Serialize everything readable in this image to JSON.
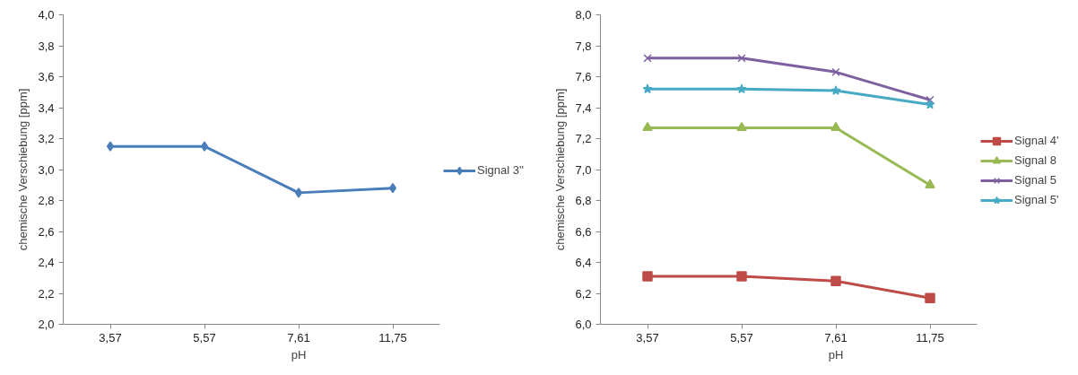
{
  "chart_data": [
    {
      "type": "line",
      "xlabel": "pH",
      "ylabel": "chemische Verschiebung [ppm]",
      "categories": [
        "3,57",
        "5,57",
        "7,61",
        "11,75"
      ],
      "series": [
        {
          "name": "Signal 3''",
          "color": "#4a7ebb",
          "marker": "diamond",
          "values": [
            3.15,
            3.15,
            2.85,
            2.88
          ]
        }
      ],
      "ylim": [
        2.0,
        4.0
      ],
      "yticks": [
        {
          "value": 2.0,
          "label": "2,0"
        },
        {
          "value": 2.2,
          "label": "2,2"
        },
        {
          "value": 2.4,
          "label": "2,4"
        },
        {
          "value": 2.6,
          "label": "2,6"
        },
        {
          "value": 2.8,
          "label": "2,8"
        },
        {
          "value": 3.0,
          "label": "3,0"
        },
        {
          "value": 3.2,
          "label": "3,2"
        },
        {
          "value": 3.4,
          "label": "3,4"
        },
        {
          "value": 3.6,
          "label": "3,6"
        },
        {
          "value": 3.8,
          "label": "3,8"
        },
        {
          "value": 4.0,
          "label": "4,0"
        }
      ],
      "grid": false,
      "legend": "right",
      "line_style": "solid"
    },
    {
      "type": "line",
      "xlabel": "pH",
      "ylabel": "chemische Verschiebung [ppm]",
      "categories": [
        "3,57",
        "5,57",
        "7,61",
        "11,75"
      ],
      "series": [
        {
          "name": "Signal 4'",
          "color": "#be4b48",
          "marker": "square",
          "values": [
            6.31,
            6.31,
            6.28,
            6.17
          ]
        },
        {
          "name": "Signal 8",
          "color": "#98b954",
          "marker": "triangle",
          "values": [
            7.27,
            7.27,
            7.27,
            6.9
          ]
        },
        {
          "name": "Signal 5",
          "color": "#7d60a0",
          "marker": "cross",
          "values": [
            7.72,
            7.72,
            7.63,
            7.45
          ]
        },
        {
          "name": "Signal 5'",
          "color": "#46aac5",
          "marker": "star",
          "values": [
            7.52,
            7.52,
            7.51,
            7.42
          ]
        }
      ],
      "ylim": [
        6.0,
        8.0
      ],
      "yticks": [
        {
          "value": 6.0,
          "label": "6,0"
        },
        {
          "value": 6.2,
          "label": "6,2"
        },
        {
          "value": 6.4,
          "label": "6,4"
        },
        {
          "value": 6.6,
          "label": "6,6"
        },
        {
          "value": 6.8,
          "label": "6,8"
        },
        {
          "value": 7.0,
          "label": "7,0"
        },
        {
          "value": 7.2,
          "label": "7,2"
        },
        {
          "value": 7.4,
          "label": "7,4"
        },
        {
          "value": 7.6,
          "label": "7,6"
        },
        {
          "value": 7.8,
          "label": "7,8"
        },
        {
          "value": 8.0,
          "label": "8,0"
        }
      ],
      "grid": false,
      "legend": "right",
      "line_style": "solid"
    }
  ]
}
